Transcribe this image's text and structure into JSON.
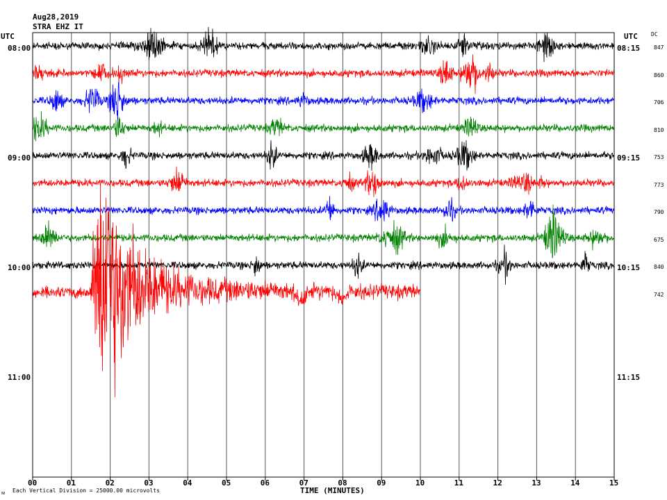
{
  "header": {
    "date": "Aug28,2019",
    "station": "STRA EHZ IT",
    "left_axis_title": "UTC",
    "right_axis_title": "UTC",
    "dc_title": "DC"
  },
  "footer": {
    "scale_note": "Each Vertical Division = 25000.00 microvolts",
    "xlabel": "TIME (MINUTES)"
  },
  "chart_data": {
    "type": "line",
    "title": "",
    "xlabel": "TIME (MINUTES)",
    "xlim": [
      0,
      15
    ],
    "x_ticks": [
      "00",
      "01",
      "02",
      "03",
      "04",
      "05",
      "06",
      "07",
      "08",
      "09",
      "10",
      "11",
      "12",
      "13",
      "14",
      "15"
    ],
    "left_time_labels": [
      "08:00",
      "09:00",
      "10:00",
      "11:00"
    ],
    "right_time_labels": [
      "08:15",
      "09:15",
      "10:15",
      "11:15"
    ],
    "grid": "vertical",
    "trace_colors": [
      "#000000",
      "#ff0000",
      "#0000ff",
      "#008000"
    ],
    "traces": [
      {
        "start": "08:00",
        "color": "#000000",
        "dc": "847",
        "end_min": 15
      },
      {
        "start": "08:15",
        "color": "#ff0000",
        "dc": "860",
        "end_min": 15
      },
      {
        "start": "08:30",
        "color": "#0000ff",
        "dc": "706",
        "end_min": 15
      },
      {
        "start": "08:45",
        "color": "#008000",
        "dc": "810",
        "end_min": 15
      },
      {
        "start": "09:00",
        "color": "#000000",
        "dc": "753",
        "end_min": 15
      },
      {
        "start": "09:15",
        "color": "#ff0000",
        "dc": "773",
        "end_min": 15
      },
      {
        "start": "09:30",
        "color": "#0000ff",
        "dc": "790",
        "end_min": 15
      },
      {
        "start": "09:45",
        "color": "#008000",
        "dc": "675",
        "end_min": 15
      },
      {
        "start": "10:00",
        "color": "#000000",
        "dc": "840",
        "end_min": 15
      },
      {
        "start": "10:15",
        "color": "#ff0000",
        "dc": "742",
        "end_min": 10
      }
    ]
  }
}
